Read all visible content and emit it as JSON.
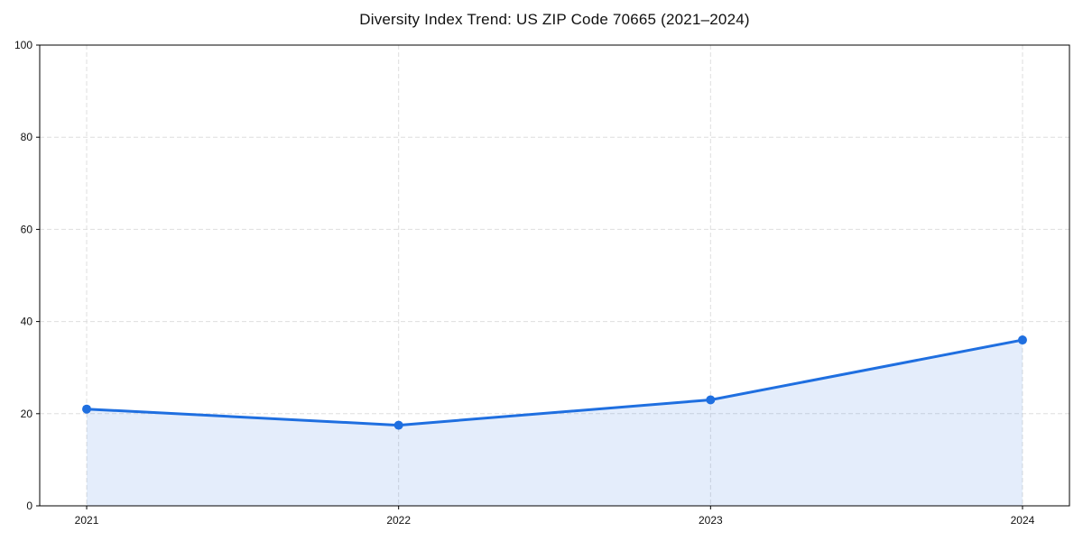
{
  "title": "Diversity Index Trend: US ZIP Code 70665 (2021–2024)",
  "chart_data": {
    "type": "area",
    "title": "Diversity Index Trend: US ZIP Code 70665 (2021–2024)",
    "categories": [
      "2021",
      "2022",
      "2023",
      "2024"
    ],
    "series": [
      {
        "name": "Diversity Index",
        "values": [
          21,
          17.5,
          23,
          36
        ]
      }
    ],
    "xlabel": "",
    "ylabel": "",
    "ylim": [
      0,
      100
    ],
    "yticks": [
      0,
      20,
      40,
      60,
      80,
      100
    ],
    "grid": true,
    "grid_style": "dashed",
    "legend": "none",
    "colors": {
      "line": "#1f6fe0",
      "marker": "#1f6fe0",
      "fill": "#1f6fe0",
      "fill_opacity": 0.12,
      "gridline": "#dedede",
      "axis": "#000000",
      "background": "#ffffff",
      "text": "#111111"
    }
  }
}
